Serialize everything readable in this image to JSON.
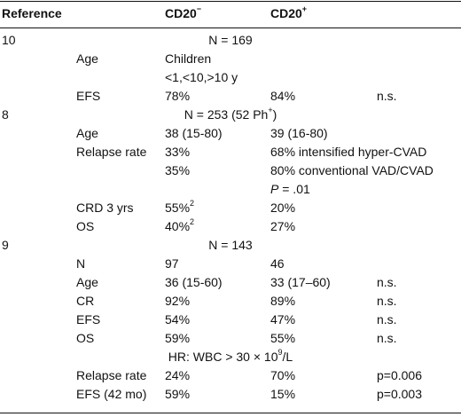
{
  "header": {
    "col_reference": "Reference",
    "col_cd20neg_base": "CD20",
    "col_cd20neg_sup": "−",
    "col_cd20pos_base": "CD20",
    "col_cd20pos_sup": "+"
  },
  "rows": [
    {
      "ref": "10",
      "n": "N = 169"
    },
    {
      "label": "Age",
      "neg": "Children"
    },
    {
      "neg": "<1,<10,>10 y"
    },
    {
      "label": "EFS",
      "neg": "78%",
      "pos": "84%",
      "p": "n.s."
    },
    {
      "ref": "8",
      "n": "N = 253 (52 Ph",
      "n_sup": "+",
      "n_tail": ")"
    },
    {
      "label": "Age",
      "neg": "38 (15-80)",
      "pos": "39 (16-80)"
    },
    {
      "label": "Relapse rate",
      "neg": "33%",
      "pos": "68% intensified hyper-CVAD"
    },
    {
      "neg": "35%",
      "pos": "80% conventional VAD/CVAD"
    },
    {
      "pos_italic": "P",
      "pos": " = .01"
    },
    {
      "label": "CRD 3 yrs",
      "neg": "55%",
      "neg_sup": "2",
      "pos": "20%"
    },
    {
      "label": "OS",
      "neg": "40%",
      "neg_sup": "2",
      "pos": "27%"
    },
    {
      "ref": "9",
      "n": "N = 143"
    },
    {
      "label": "N",
      "neg": "97",
      "pos": "46"
    },
    {
      "label": "Age",
      "neg": "36 (15-60)",
      "pos": "33 (17–60)",
      "p": "n.s."
    },
    {
      "label": "CR",
      "neg": "92%",
      "pos": "89%",
      "p": "n.s."
    },
    {
      "label": "EFS",
      "neg": "54%",
      "pos": "47%",
      "p": "n.s."
    },
    {
      "label": "OS",
      "neg": "59%",
      "pos": "55%",
      "p": "n.s."
    },
    {
      "n": "HR: WBC > 30 × 10",
      "n_sup": "9",
      "n_tail": "/L"
    },
    {
      "label": "Relapse rate",
      "neg": "24%",
      "pos": "70%",
      "p": "p=0.006"
    },
    {
      "label": "EFS (42 mo)",
      "neg": "59%",
      "pos": "15%",
      "p": "p=0.003"
    }
  ]
}
